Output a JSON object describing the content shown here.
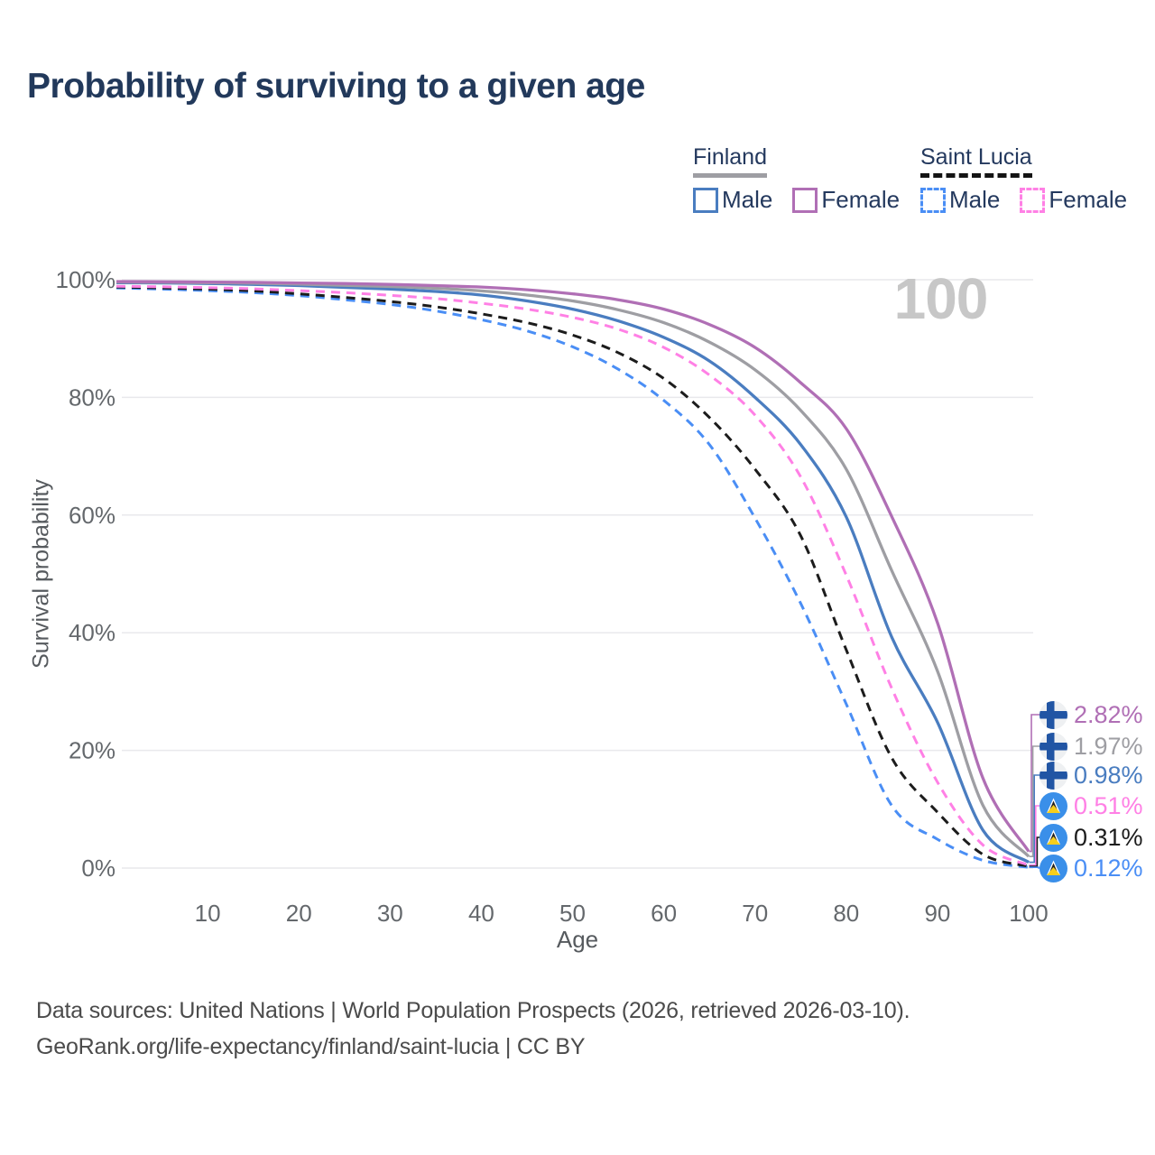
{
  "title": "Probability of surviving to a given age",
  "hover_age_label": "100",
  "legend": {
    "groups": [
      {
        "name": "Finland",
        "line_style": "solid",
        "underline_color": "#9e9ea3",
        "items": [
          {
            "label": "Male",
            "color": "#4a7dc0"
          },
          {
            "label": "Female",
            "color": "#b06fb5"
          }
        ]
      },
      {
        "name": "Saint Lucia",
        "line_style": "dashed",
        "underline_color": "#141414",
        "items": [
          {
            "label": "Male",
            "color": "#4a8ef5"
          },
          {
            "label": "Female",
            "color": "#ff80e5"
          }
        ]
      }
    ]
  },
  "axes": {
    "ylabel": "Survival probability",
    "xlabel": "Age",
    "y_ticks": [
      {
        "value": 0,
        "label": "0%"
      },
      {
        "value": 20,
        "label": "20%"
      },
      {
        "value": 40,
        "label": "40%"
      },
      {
        "value": 60,
        "label": "60%"
      },
      {
        "value": 80,
        "label": "80%"
      },
      {
        "value": 100,
        "label": "100%"
      }
    ],
    "x_ticks": [
      {
        "value": 10,
        "label": "10"
      },
      {
        "value": 20,
        "label": "20"
      },
      {
        "value": 30,
        "label": "30"
      },
      {
        "value": 40,
        "label": "40"
      },
      {
        "value": 50,
        "label": "50"
      },
      {
        "value": 60,
        "label": "60"
      },
      {
        "value": 70,
        "label": "70"
      },
      {
        "value": 80,
        "label": "80"
      },
      {
        "value": 90,
        "label": "90"
      },
      {
        "value": 100,
        "label": "100"
      }
    ]
  },
  "chart_data": {
    "type": "line",
    "title": "Probability of surviving to a given age",
    "xlabel": "Age",
    "ylabel": "Survival probability",
    "xlim": [
      0,
      100
    ],
    "ylim": [
      0,
      100
    ],
    "grid": "horizontal-only",
    "legend_position": "top-right",
    "x": [
      0,
      5,
      10,
      15,
      20,
      25,
      30,
      35,
      40,
      45,
      50,
      55,
      60,
      65,
      70,
      75,
      80,
      85,
      90,
      95,
      100
    ],
    "series": [
      {
        "name": "Finland Female",
        "country": "finland",
        "color": "#b06fb5",
        "dashed": false,
        "end_label": "2.82%",
        "values": [
          99.7,
          99.65,
          99.6,
          99.55,
          99.45,
          99.35,
          99.2,
          99.0,
          98.75,
          98.3,
          97.6,
          96.6,
          95.0,
          92.4,
          88.5,
          82.5,
          74.7,
          59.7,
          41.7,
          15.2,
          2.82
        ]
      },
      {
        "name": "Finland",
        "country": "finland",
        "color": "#9e9ea3",
        "dashed": false,
        "end_label": "1.97%",
        "values": [
          99.6,
          99.55,
          99.5,
          99.4,
          99.25,
          99.05,
          98.85,
          98.55,
          98.1,
          97.4,
          96.4,
          94.9,
          92.7,
          89.4,
          84.7,
          77.8,
          67.8,
          50.5,
          33.5,
          10.6,
          1.97
        ]
      },
      {
        "name": "Finland Male",
        "country": "finland",
        "color": "#4a7dc0",
        "dashed": false,
        "end_label": "0.98%",
        "values": [
          99.5,
          99.45,
          99.35,
          99.2,
          99.0,
          98.7,
          98.4,
          98.0,
          97.4,
          96.4,
          95.0,
          93.0,
          90.2,
          86.2,
          80.0,
          72.0,
          59.7,
          39.2,
          24.8,
          6.4,
          0.98
        ]
      },
      {
        "name": "Saint Lucia Female",
        "country": "saint-lucia",
        "color": "#ff80e5",
        "dashed": true,
        "end_label": "0.51%",
        "values": [
          98.9,
          98.8,
          98.65,
          98.45,
          98.15,
          97.8,
          97.35,
          96.8,
          96.0,
          95.0,
          93.6,
          91.6,
          88.5,
          83.8,
          77.0,
          66.5,
          49.8,
          30.5,
          14.6,
          3.9,
          0.51
        ]
      },
      {
        "name": "Saint Lucia",
        "country": "saint-lucia",
        "color": "#1c1c1c",
        "dashed": true,
        "end_label": "0.31%",
        "values": [
          98.75,
          98.6,
          98.4,
          98.1,
          97.6,
          97.0,
          96.3,
          95.4,
          94.2,
          92.7,
          90.6,
          87.6,
          83.2,
          76.6,
          67.8,
          56.5,
          37.1,
          18.7,
          9.5,
          2.3,
          0.31
        ]
      },
      {
        "name": "Saint Lucia Male",
        "country": "saint-lucia",
        "color": "#4a8ef5",
        "dashed": true,
        "end_label": "0.12%",
        "values": [
          98.6,
          98.4,
          98.15,
          97.8,
          97.3,
          96.6,
          95.8,
          94.7,
          93.2,
          91.3,
          88.6,
          84.8,
          79.5,
          72.0,
          59.5,
          45.0,
          27.9,
          10.6,
          4.9,
          1.3,
          0.12
        ]
      }
    ]
  },
  "footer": {
    "line1": "Data sources: United Nations | World Population Prospects (2026, retrieved 2026-03-10).",
    "line2": "GeoRank.org/life-expectancy/finland/saint-lucia | CC BY"
  },
  "colors": {
    "gridline": "#e9e9ec",
    "tick_text": "#64686c",
    "title_text": "#22395b",
    "hover_age_text": "#c7c7c7"
  }
}
